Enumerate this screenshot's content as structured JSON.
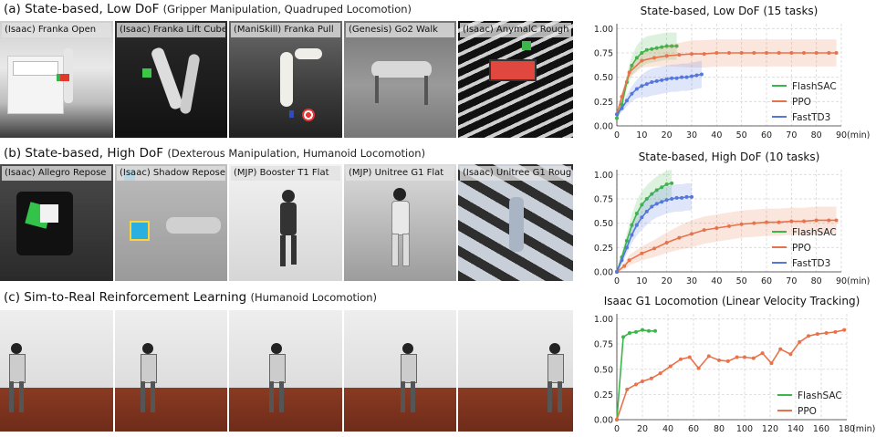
{
  "sections": [
    {
      "title": "(a) State-based, Low DoF",
      "subtitle": "(Gripper Manipulation, Quadruped Locomotion)",
      "tiles": [
        {
          "label": "(Isaac) Franka Open"
        },
        {
          "label": "(Isaac) Franka Lift Cube"
        },
        {
          "label": "(ManiSkill) Franka Pull"
        },
        {
          "label": "(Genesis) Go2 Walk"
        },
        {
          "label": "(Isaac) AnymalC Rough"
        }
      ]
    },
    {
      "title": "(b) State-based, High DoF",
      "subtitle": "(Dexterous Manipulation, Humanoid Locomotion)",
      "tiles": [
        {
          "label": "(Isaac) Allegro Repose"
        },
        {
          "label": "(Isaac) Shadow Repose"
        },
        {
          "label": "(MJP) Booster T1 Flat"
        },
        {
          "label": "(MJP) Unitree G1 Flat"
        },
        {
          "label": "(Isaac) Unitree G1 Rough"
        }
      ]
    },
    {
      "title": "(c) Sim-to-Real Reinforcement Learning",
      "subtitle": "(Humanoid Locomotion)",
      "tiles": [
        {
          "label": ""
        },
        {
          "label": ""
        },
        {
          "label": ""
        },
        {
          "label": ""
        },
        {
          "label": ""
        }
      ]
    }
  ],
  "colors": {
    "FlashSAC": "#3cb54a",
    "PPO": "#e8734a",
    "FastTD3": "#5577dd"
  },
  "chart_data": [
    {
      "type": "line",
      "title": "State-based, Low DoF (15 tasks)",
      "xlabel": "(min)",
      "xticks": [
        0,
        10,
        20,
        30,
        40,
        50,
        60,
        70,
        80,
        90
      ],
      "yticks": [
        "0.00",
        "0.25",
        "0.50",
        "0.75",
        "1.00"
      ],
      "xlim": [
        0,
        90
      ],
      "ylim": [
        0,
        1.05
      ],
      "grid": true,
      "legend": "right",
      "series": [
        {
          "name": "FlashSAC",
          "shaded": true,
          "x": [
            0,
            2,
            4,
            6,
            8,
            10,
            12,
            14,
            16,
            18,
            20,
            22,
            24
          ],
          "y": [
            0.08,
            0.22,
            0.45,
            0.62,
            0.7,
            0.75,
            0.78,
            0.79,
            0.8,
            0.81,
            0.82,
            0.82,
            0.82
          ]
        },
        {
          "name": "PPO",
          "shaded": true,
          "x": [
            0,
            2,
            5,
            10,
            15,
            20,
            25,
            30,
            35,
            40,
            45,
            50,
            55,
            60,
            65,
            70,
            75,
            80,
            85,
            88
          ],
          "y": [
            0.12,
            0.3,
            0.55,
            0.67,
            0.7,
            0.72,
            0.73,
            0.74,
            0.74,
            0.75,
            0.75,
            0.75,
            0.75,
            0.75,
            0.75,
            0.75,
            0.75,
            0.75,
            0.75,
            0.75
          ]
        },
        {
          "name": "FastTD3",
          "shaded": true,
          "x": [
            0,
            2,
            4,
            6,
            8,
            10,
            12,
            14,
            16,
            18,
            20,
            22,
            24,
            26,
            28,
            30,
            32,
            34
          ],
          "y": [
            0.12,
            0.18,
            0.26,
            0.33,
            0.38,
            0.41,
            0.43,
            0.45,
            0.46,
            0.47,
            0.48,
            0.49,
            0.49,
            0.5,
            0.5,
            0.51,
            0.52,
            0.53
          ]
        }
      ]
    },
    {
      "type": "line",
      "title": "State-based, High DoF (10 tasks)",
      "xlabel": "(min)",
      "xticks": [
        0,
        10,
        20,
        30,
        40,
        50,
        60,
        70,
        80,
        90
      ],
      "yticks": [
        "0.00",
        "0.25",
        "0.50",
        "0.75",
        "1.00"
      ],
      "xlim": [
        0,
        90
      ],
      "ylim": [
        0,
        1.05
      ],
      "grid": true,
      "legend": "right",
      "series": [
        {
          "name": "FlashSAC",
          "shaded": true,
          "x": [
            0,
            2,
            4,
            6,
            8,
            10,
            12,
            14,
            16,
            18,
            20,
            22
          ],
          "y": [
            0.0,
            0.15,
            0.32,
            0.48,
            0.6,
            0.69,
            0.75,
            0.8,
            0.84,
            0.87,
            0.9,
            0.91
          ]
        },
        {
          "name": "PPO",
          "shaded": true,
          "x": [
            0,
            3,
            5,
            10,
            15,
            20,
            25,
            30,
            35,
            40,
            45,
            50,
            55,
            60,
            65,
            70,
            75,
            80,
            85,
            88
          ],
          "y": [
            0.0,
            0.06,
            0.12,
            0.19,
            0.24,
            0.3,
            0.35,
            0.39,
            0.43,
            0.45,
            0.47,
            0.49,
            0.5,
            0.51,
            0.51,
            0.52,
            0.52,
            0.53,
            0.53,
            0.53
          ]
        },
        {
          "name": "FastTD3",
          "shaded": true,
          "x": [
            0,
            2,
            4,
            6,
            8,
            10,
            12,
            14,
            16,
            18,
            20,
            22,
            24,
            26,
            28,
            30
          ],
          "y": [
            0.0,
            0.12,
            0.25,
            0.38,
            0.48,
            0.56,
            0.62,
            0.67,
            0.7,
            0.72,
            0.74,
            0.75,
            0.76,
            0.76,
            0.77,
            0.77
          ]
        }
      ]
    },
    {
      "type": "line",
      "title": "Isaac G1 Locomotion (Linear Velocity Tracking)",
      "xlabel": "(min)",
      "xticks": [
        0,
        20,
        40,
        60,
        80,
        100,
        120,
        140,
        160,
        180
      ],
      "yticks": [
        "0.00",
        "0.25",
        "0.50",
        "0.75",
        "1.00"
      ],
      "xlim": [
        0,
        180
      ],
      "ylim": [
        0,
        1.05
      ],
      "grid": true,
      "legend": "right",
      "series": [
        {
          "name": "FlashSAC",
          "shaded": false,
          "x": [
            0,
            5,
            10,
            15,
            20,
            25,
            30
          ],
          "y": [
            0.0,
            0.82,
            0.86,
            0.87,
            0.89,
            0.88,
            0.88
          ]
        },
        {
          "name": "PPO",
          "shaded": false,
          "x": [
            0,
            8,
            15,
            20,
            27,
            34,
            42,
            50,
            57,
            64,
            72,
            80,
            87,
            94,
            100,
            107,
            114,
            121,
            128,
            136,
            143,
            150,
            157,
            164,
            171,
            178
          ],
          "y": [
            0.0,
            0.3,
            0.35,
            0.38,
            0.41,
            0.46,
            0.53,
            0.6,
            0.62,
            0.51,
            0.63,
            0.59,
            0.58,
            0.62,
            0.62,
            0.61,
            0.66,
            0.56,
            0.7,
            0.65,
            0.77,
            0.83,
            0.85,
            0.86,
            0.87,
            0.89
          ]
        }
      ]
    }
  ]
}
